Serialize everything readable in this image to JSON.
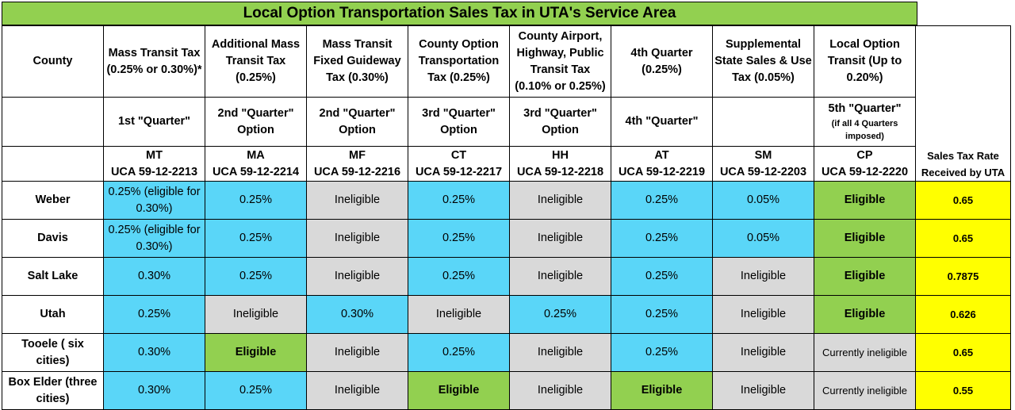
{
  "title": "Local Option Transportation Sales Tax in UTA's Service Area",
  "header": {
    "county": "County",
    "rate": "Sales Tax Rate Received by UTA",
    "columns": [
      {
        "name": "Mass Transit Tax (0.25% or 0.30%)*",
        "quarter": "1st \"Quarter\"",
        "quarter_note": "",
        "code": "MT",
        "uca": "UCA 59-12-2213"
      },
      {
        "name": "Additional Mass Transit Tax (0.25%)",
        "quarter": "2nd \"Quarter\" Option",
        "quarter_note": "",
        "code": "MA",
        "uca": "UCA 59-12-2214"
      },
      {
        "name": "Mass Transit Fixed Guideway Tax (0.30%)",
        "quarter": "2nd \"Quarter\" Option",
        "quarter_note": "",
        "code": "MF",
        "uca": "UCA 59-12-2216"
      },
      {
        "name": "County Option Transportation Tax (0.25%)",
        "quarter": "3rd \"Quarter\" Option",
        "quarter_note": "",
        "code": "CT",
        "uca": "UCA 59-12-2217"
      },
      {
        "name": "County Airport, Highway, Public Transit Tax (0.10% or 0.25%)",
        "quarter": "3rd \"Quarter\" Option",
        "quarter_note": "",
        "code": "HH",
        "uca": "UCA 59-12-2218"
      },
      {
        "name": "4th Quarter (0.25%)",
        "quarter": "4th \"Quarter\"",
        "quarter_note": "",
        "code": "AT",
        "uca": "UCA 59-12-2219"
      },
      {
        "name": "Supplemental State Sales & Use Tax (0.05%)",
        "quarter": "",
        "quarter_note": "",
        "code": "SM",
        "uca": "UCA 59-12-2203"
      },
      {
        "name": "Local Option Transit (Up to 0.20%)",
        "quarter": "5th \"Quarter\"",
        "quarter_note": "(if all 4 Quarters imposed)",
        "code": "CP",
        "uca": "UCA 59-12-2220"
      }
    ]
  },
  "rows": [
    {
      "county": "Weber",
      "cells": [
        {
          "v": "0.25% (eligible for 0.30%)",
          "c": "blue"
        },
        {
          "v": "0.25%",
          "c": "blue"
        },
        {
          "v": "Ineligible",
          "c": "gray"
        },
        {
          "v": "0.25%",
          "c": "blue"
        },
        {
          "v": "Ineligible",
          "c": "gray"
        },
        {
          "v": "0.25%",
          "c": "blue"
        },
        {
          "v": "0.05%",
          "c": "blue"
        },
        {
          "v": "Eligible",
          "c": "green"
        }
      ],
      "rate": "0.65"
    },
    {
      "county": "Davis",
      "cells": [
        {
          "v": "0.25% (eligible for 0.30%)",
          "c": "blue"
        },
        {
          "v": "0.25%",
          "c": "blue"
        },
        {
          "v": "Ineligible",
          "c": "gray"
        },
        {
          "v": "0.25%",
          "c": "blue"
        },
        {
          "v": "Ineligible",
          "c": "gray"
        },
        {
          "v": "0.25%",
          "c": "blue"
        },
        {
          "v": "0.05%",
          "c": "blue"
        },
        {
          "v": "Eligible",
          "c": "green"
        }
      ],
      "rate": "0.65"
    },
    {
      "county": "Salt Lake",
      "cells": [
        {
          "v": "0.30%",
          "c": "blue"
        },
        {
          "v": "0.25%",
          "c": "blue"
        },
        {
          "v": "Ineligible",
          "c": "gray"
        },
        {
          "v": "0.25%",
          "c": "blue"
        },
        {
          "v": "Ineligible",
          "c": "gray"
        },
        {
          "v": "0.25%",
          "c": "blue"
        },
        {
          "v": "Ineligible",
          "c": "gray"
        },
        {
          "v": "Eligible",
          "c": "green"
        }
      ],
      "rate": "0.7875"
    },
    {
      "county": "Utah",
      "cells": [
        {
          "v": "0.25%",
          "c": "blue"
        },
        {
          "v": "Ineligible",
          "c": "gray"
        },
        {
          "v": "0.30%",
          "c": "blue"
        },
        {
          "v": "Ineligible",
          "c": "gray"
        },
        {
          "v": "0.25%",
          "c": "blue"
        },
        {
          "v": "0.25%",
          "c": "blue"
        },
        {
          "v": "Ineligible",
          "c": "gray"
        },
        {
          "v": "Eligible",
          "c": "green"
        }
      ],
      "rate": "0.626"
    },
    {
      "county": "Tooele ( six cities)",
      "cells": [
        {
          "v": "0.30%",
          "c": "blue"
        },
        {
          "v": "Eligible",
          "c": "green"
        },
        {
          "v": "Ineligible",
          "c": "gray"
        },
        {
          "v": "0.25%",
          "c": "blue"
        },
        {
          "v": "Ineligible",
          "c": "gray"
        },
        {
          "v": "0.25%",
          "c": "blue"
        },
        {
          "v": "Ineligible",
          "c": "gray"
        },
        {
          "v": "Currently ineligible",
          "c": "gray small"
        }
      ],
      "rate": "0.65"
    },
    {
      "county": "Box Elder (three cities)",
      "cells": [
        {
          "v": "0.30%",
          "c": "blue"
        },
        {
          "v": "0.25%",
          "c": "blue"
        },
        {
          "v": "Ineligible",
          "c": "gray"
        },
        {
          "v": "Eligible",
          "c": "green"
        },
        {
          "v": "Ineligible",
          "c": "gray"
        },
        {
          "v": "Eligible",
          "c": "green"
        },
        {
          "v": "Ineligible",
          "c": "gray"
        },
        {
          "v": "Currently ineligible",
          "c": "gray small"
        }
      ],
      "rate": "0.55"
    }
  ],
  "colors": {
    "blue": "#5ad6f8",
    "gray": "#d9d9d9",
    "green": "#92d050",
    "yellow": "#ffff00"
  }
}
